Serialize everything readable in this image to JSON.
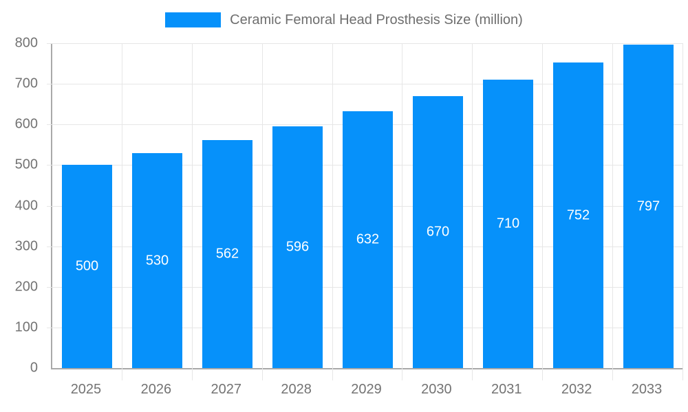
{
  "chart_data": {
    "type": "bar",
    "title": "Ceramic Femoral Head Prosthesis Size (million)",
    "legend": {
      "position": "top",
      "label": "Ceramic Femoral Head Prosthesis Size (million)"
    },
    "categories": [
      "2025",
      "2026",
      "2027",
      "2028",
      "2029",
      "2030",
      "2031",
      "2032",
      "2033"
    ],
    "values": [
      500,
      530,
      562,
      596,
      632,
      670,
      710,
      752,
      797
    ],
    "value_labels": [
      "500",
      "530",
      "562",
      "596",
      "632",
      "670",
      "710",
      "752",
      "797"
    ],
    "xlabel": "",
    "ylabel": "",
    "ylim": [
      0,
      800
    ],
    "ytick_step": 100,
    "grid": true,
    "colors": {
      "bar": "#0691fa",
      "value_label": "#ffffff",
      "axis_text": "#737373",
      "legend_text": "#6e6e6e",
      "gridline": "#e6e6e6",
      "axis_line": "#a9a9a9",
      "background": "#ffffff"
    }
  }
}
